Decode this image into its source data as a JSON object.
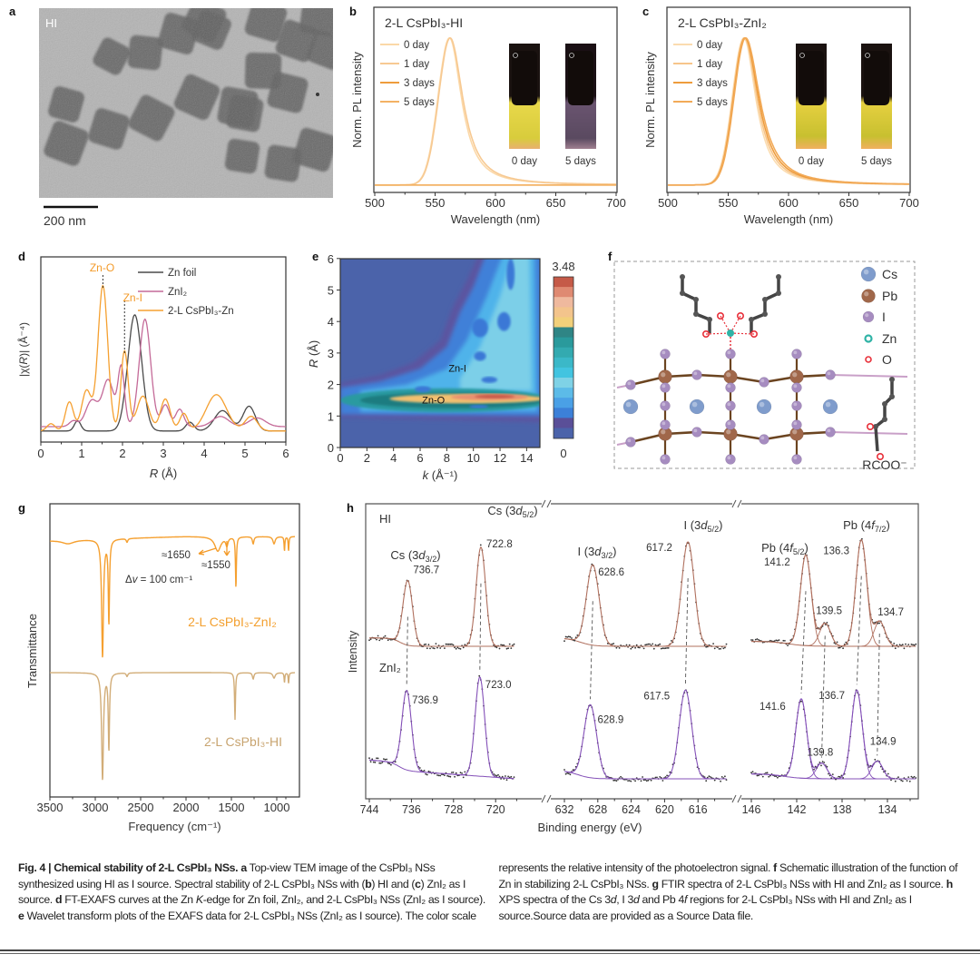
{
  "panel_labels": {
    "a": "a",
    "b": "b",
    "c": "c",
    "d": "d",
    "e": "e",
    "f": "f",
    "g": "g",
    "h": "h"
  },
  "panel_a": {
    "label": "HI",
    "scale_bar": "200 nm"
  },
  "panel_f": {
    "legend": [
      {
        "name": "Cs",
        "color": "#7f9ccc"
      },
      {
        "name": "Pb",
        "color": "#a0674a"
      },
      {
        "name": "I",
        "color": "#a68cc0"
      },
      {
        "name": "Zn",
        "color": "#2fb3a6"
      },
      {
        "name": "O",
        "color": "#e8303a"
      }
    ],
    "ligand_label": "RCOO⁻"
  },
  "chart_data": [
    {
      "panel": "b",
      "type": "line",
      "title": "2-L CsPbI₃-HI",
      "xlabel": "Wavelength (nm)",
      "ylabel": "Norm. PL intensity",
      "xlim": [
        500,
        700
      ],
      "xticks": [
        "500",
        "550",
        "600",
        "650",
        "700"
      ],
      "series": [
        {
          "name": "0 day",
          "color": "#fbd8a8",
          "peak_nm": 562
        },
        {
          "name": "1 day",
          "color": "#f7c992",
          "peak_nm": 562.5
        },
        {
          "name": "3 days",
          "color": "#ee9c3c",
          "peak_nm": null
        },
        {
          "name": "5 days",
          "color": "#f3b264",
          "peak_nm": null
        }
      ],
      "inset_labels": [
        "0 day",
        "5 days"
      ]
    },
    {
      "panel": "c",
      "type": "line",
      "title": "2-L CsPbI₃-ZnI₂",
      "xlabel": "Wavelength (nm)",
      "ylabel": "Norm. PL intensity",
      "xlim": [
        500,
        700
      ],
      "xticks": [
        "500",
        "550",
        "600",
        "650",
        "700"
      ],
      "series": [
        {
          "name": "0 day",
          "color": "#fbdcb0",
          "peak_nm": 563
        },
        {
          "name": "1 day",
          "color": "#f7c58a",
          "peak_nm": 563.5
        },
        {
          "name": "3 days",
          "color": "#ee9c3c",
          "peak_nm": 564
        },
        {
          "name": "5 days",
          "color": "#f2aa58",
          "peak_nm": 564.5
        }
      ],
      "inset_labels": [
        "0 day",
        "5 days"
      ]
    },
    {
      "panel": "d",
      "type": "line",
      "xlabel": {
        "var": "R",
        "unit": " (Å)"
      },
      "ylabel": {
        "pre": "|χ(",
        "var": "R",
        "post": ")| (Å⁻⁴)"
      },
      "xlim": [
        0,
        6
      ],
      "xticks": [
        "0",
        "1",
        "2",
        "3",
        "4",
        "5",
        "6"
      ],
      "annotations": [
        "Zn-O",
        "Zn-I"
      ],
      "series": [
        {
          "name": "Zn foil",
          "color": "#4a4a4a",
          "peaks": [
            [
              0.9,
              0.07,
              0.08
            ],
            [
              2.3,
              0.8,
              0.17
            ],
            [
              3.65,
              0.06,
              0.1
            ],
            [
              4.45,
              0.14,
              0.2
            ],
            [
              5.1,
              0.17,
              0.15
            ]
          ]
        },
        {
          "name": "ZnI₂",
          "color": "#c46a98",
          "peaks": [
            [
              0.8,
              0.04,
              0.1
            ],
            [
              1.25,
              0.18,
              0.15
            ],
            [
              1.65,
              0.32,
              0.14
            ],
            [
              1.97,
              0.4,
              0.08
            ],
            [
              2.55,
              0.74,
              0.14
            ],
            [
              3.05,
              0.15,
              0.1
            ],
            [
              3.4,
              0.12,
              0.1
            ],
            [
              4.4,
              0.07,
              0.2
            ],
            [
              5.3,
              0.06,
              0.2
            ]
          ]
        },
        {
          "name": "2-L CsPbI₃-Zn",
          "color": "#f5a030",
          "peaks": [
            [
              0.25,
              0.05,
              0.1
            ],
            [
              0.7,
              0.2,
              0.1
            ],
            [
              1.12,
              0.28,
              0.12
            ],
            [
              1.52,
              1.0,
              0.12
            ],
            [
              2.05,
              0.55,
              0.09
            ],
            [
              2.5,
              0.24,
              0.15
            ],
            [
              3.05,
              0.22,
              0.12
            ],
            [
              3.5,
              0.12,
              0.1
            ],
            [
              4.3,
              0.25,
              0.25
            ],
            [
              5.15,
              0.1,
              0.15
            ]
          ]
        }
      ]
    },
    {
      "panel": "e",
      "type": "heatmap",
      "xlabel": {
        "var": "k",
        "unit": " (Å⁻¹)"
      },
      "ylabel": {
        "var": "R",
        "unit": " (Å)"
      },
      "xlim": [
        0,
        15
      ],
      "ylim": [
        0,
        6
      ],
      "xticks": [
        "0",
        "2",
        "4",
        "6",
        "8",
        "10",
        "12",
        "14"
      ],
      "yticks": [
        "0",
        "1",
        "2",
        "3",
        "4",
        "5",
        "6"
      ],
      "colorbar": {
        "min": "0",
        "max": "3.48"
      },
      "annotations": [
        "Zn-I",
        "Zn-O"
      ],
      "features": [
        {
          "k": 9.5,
          "R": 1.55,
          "dk": 5.8,
          "dR": 0.15,
          "level": 0.75
        },
        {
          "k": 11.2,
          "R": 1.6,
          "dk": 2.9,
          "dR": 0.1,
          "level": 0.9
        },
        {
          "k": 11.6,
          "R": 1.62,
          "dk": 1.5,
          "dR": 0.06,
          "level": 1.0
        }
      ]
    },
    {
      "panel": "g",
      "type": "line",
      "xlabel": "Frequency (cm⁻¹)",
      "ylabel": "Transmittance",
      "xlim": [
        3500,
        800
      ],
      "xticks": [
        "3500",
        "3000",
        "2500",
        "2000",
        "1500",
        "1000"
      ],
      "annotations": {
        "a1": "≈1650",
        "a2": "≈1550",
        "delta": {
          "pre": "Δ",
          "var": "v",
          "post": " = 100 cm⁻¹"
        }
      },
      "series": [
        {
          "name": "2-L CsPbI₃-ZnI₂",
          "color": "#f5a030",
          "dips": [
            [
              2920,
              130,
              12
            ],
            [
              2850,
              92,
              8
            ],
            [
              1450,
              56,
              6
            ],
            [
              1650,
              16,
              40
            ],
            [
              1550,
              9,
              14
            ],
            [
              1260,
              8,
              10
            ],
            [
              1030,
              8,
              15
            ],
            [
              915,
              16,
              5
            ],
            [
              870,
              16,
              5
            ],
            [
              3300,
              4,
              80
            ],
            [
              2650,
              4,
              10
            ]
          ]
        },
        {
          "name": "2-L CsPbI₃-HI",
          "color": "#d2ad78",
          "dips": [
            [
              2920,
              118,
              12
            ],
            [
              2850,
              84,
              8
            ],
            [
              1460,
              52,
              6
            ],
            [
              1260,
              7,
              10
            ],
            [
              1030,
              6,
              15
            ],
            [
              915,
              11,
              5
            ],
            [
              870,
              12,
              5
            ],
            [
              2650,
              4,
              10
            ]
          ]
        }
      ]
    },
    {
      "panel": "h",
      "type": "line",
      "xlabel": "Binding energy (eV)",
      "ylabel": "Intensity",
      "segments": [
        {
          "xlim": [
            744,
            716.5
          ],
          "xticks": [
            "744",
            "736",
            "728",
            "720"
          ]
        },
        {
          "xlim": [
            632,
            612.6
          ],
          "xticks": [
            "632",
            "628",
            "624",
            "620",
            "616"
          ]
        },
        {
          "xlim": [
            146,
            131.5
          ],
          "xticks": [
            "146",
            "142",
            "138",
            "134"
          ]
        }
      ],
      "region_labels": [
        {
          "pre": "Cs (3",
          "it": "d",
          "sub": "3/2",
          "post": ")"
        },
        {
          "pre": "Cs (3",
          "it": "d",
          "sub": "5/2",
          "post": ")"
        },
        {
          "pre": "I (3",
          "it": "d",
          "sub": "3/2",
          "post": ")"
        },
        {
          "pre": "I (3",
          "it": "d",
          "sub": "5/2",
          "post": ")"
        },
        {
          "pre": "Pb (4",
          "it": "f",
          "sub": "5/2",
          "post": ")"
        },
        {
          "pre": "Pb (4",
          "it": "f",
          "sub": "7/2",
          "post": ")"
        }
      ],
      "series": [
        {
          "name": "HI",
          "color": "#b0705e",
          "peaks": [
            {
              "be": 736.7,
              "h": 0.62,
              "label": "736.7"
            },
            {
              "be": 722.8,
              "h": 0.95,
              "label": "722.8"
            },
            {
              "be": 628.6,
              "h": 0.77,
              "label": "628.6"
            },
            {
              "be": 617.2,
              "h": 1.0,
              "label": "617.2"
            },
            {
              "be": 141.2,
              "h": 0.87,
              "label": "141.2"
            },
            {
              "be": 139.5,
              "h": 0.22,
              "label": "139.5"
            },
            {
              "be": 136.3,
              "h": 1.02,
              "label": "136.3"
            },
            {
              "be": 134.7,
              "h": 0.24,
              "label": "134.7"
            }
          ]
        },
        {
          "name": "ZnI₂",
          "color": "#8450b8",
          "peaks": [
            {
              "be": 736.9,
              "h": 0.76,
              "label": "736.9"
            },
            {
              "be": 723.0,
              "h": 0.95,
              "label": "723.0"
            },
            {
              "be": 628.9,
              "h": 0.7,
              "label": "628.9"
            },
            {
              "be": 617.5,
              "h": 0.85,
              "label": "617.5"
            },
            {
              "be": 141.6,
              "h": 0.76,
              "label": "141.6"
            },
            {
              "be": 139.8,
              "h": 0.15,
              "label": "139.8"
            },
            {
              "be": 136.7,
              "h": 0.85,
              "label": "136.7"
            },
            {
              "be": 134.9,
              "h": 0.17,
              "label": "134.9"
            }
          ]
        }
      ]
    }
  ],
  "caption": [
    {
      "t": "Fig. 4 | ",
      "s": "b"
    },
    {
      "t": "Chemical stability of 2-L CsPbI₃ NSs.",
      "s": "b"
    },
    {
      "t": " "
    },
    {
      "t": "a",
      "s": "b"
    },
    {
      "t": " Top-view TEM image of the CsPbI₃ NSs synthesized using HI as I source. Spectral stability of 2-L CsPbI₃ NSs with ("
    },
    {
      "t": "b",
      "s": "b"
    },
    {
      "t": ") HI and ("
    },
    {
      "t": "c",
      "s": "b"
    },
    {
      "t": ") ZnI₂ as I source. "
    },
    {
      "t": "d",
      "s": "b"
    },
    {
      "t": " FT-EXAFS curves at the Zn "
    },
    {
      "t": "K",
      "s": "i"
    },
    {
      "t": "-edge for Zn foil, ZnI₂, and 2-L CsPbI₃ NSs (ZnI₂ as I source). "
    },
    {
      "t": "e",
      "s": "b"
    },
    {
      "t": " Wavelet transform plots of the EXAFS data for 2-L CsPbI₃ NSs (ZnI₂ as I source). The color scale represents the relative intensity of the photoelectron signal. "
    },
    {
      "t": "f",
      "s": "b"
    },
    {
      "t": " Schematic illustration of the function of Zn in stabilizing 2-L CsPbI₃ NSs. "
    },
    {
      "t": "g",
      "s": "b"
    },
    {
      "t": " FTIR spectra of 2-L CsPbI₃ NSs with HI and ZnI₂ as I source. "
    },
    {
      "t": "h",
      "s": "b"
    },
    {
      "t": " XPS spectra of the Cs 3"
    },
    {
      "t": "d",
      "s": "i"
    },
    {
      "t": ", I 3"
    },
    {
      "t": "d",
      "s": "i"
    },
    {
      "t": " and Pb 4"
    },
    {
      "t": "f",
      "s": "i"
    },
    {
      "t": " regions for 2-L CsPbI₃ NSs with HI and ZnI₂ as I source.Source data are provided as a Source Data file."
    }
  ]
}
